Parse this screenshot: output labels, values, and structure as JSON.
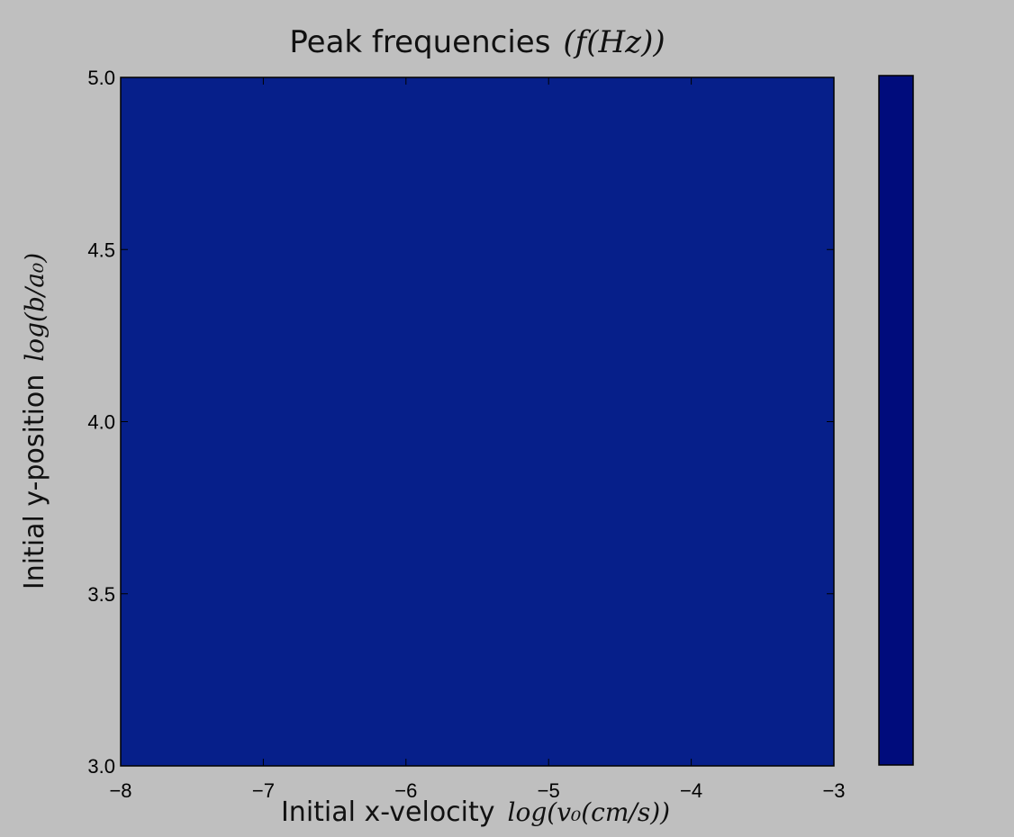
{
  "chart_data": {
    "type": "heatmap",
    "title": "Peak frequencies",
    "title_math": "(f(Hz))",
    "xlabel": "Initial x-velocity",
    "xlabel_math": "log(v₀(cm/s))",
    "ylabel": "Initial y-position",
    "ylabel_math": "log(b/a₀)",
    "xlim": [
      -8,
      5
    ],
    "xlim_shown": [
      -8,
      -3
    ],
    "ylim": [
      3.0,
      5.0
    ],
    "x_ticks": [
      -8,
      -7,
      -6,
      -5,
      -4,
      -3
    ],
    "x_tick_labels": [
      "−8",
      "−7",
      "−6",
      "−5",
      "−4",
      "−3"
    ],
    "y_ticks": [
      3.0,
      3.5,
      4.0,
      4.5,
      5.0
    ],
    "y_tick_labels": [
      "3.0",
      "3.5",
      "4.0",
      "4.5",
      "5.0"
    ],
    "grid": false,
    "colorbar": {
      "placement": "right",
      "color": "#000c7c"
    },
    "fill_color": "#061f8a"
  }
}
